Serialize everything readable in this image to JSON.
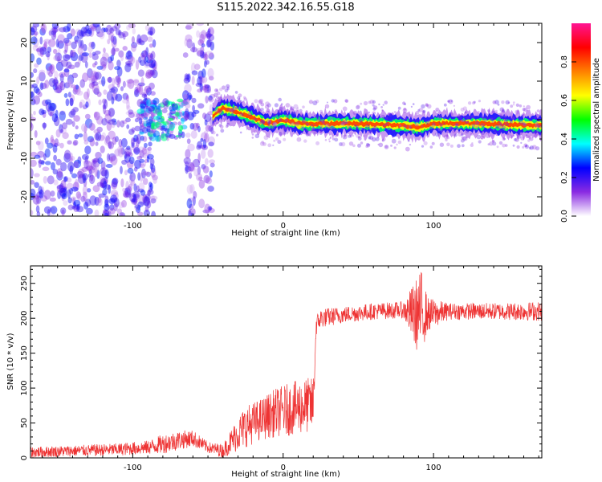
{
  "title": "S115.2022.342.16.55.G18",
  "chart_data": [
    {
      "type": "heatmap",
      "xlabel": "Height of straight line (km)",
      "ylabel": "Frequency (Hz)",
      "xlim": [
        -168,
        172
      ],
      "ylim": [
        -25,
        25
      ],
      "xticks": [
        -100,
        0,
        100
      ],
      "yticks": [
        -20,
        -10,
        0,
        10,
        20
      ],
      "grid": false,
      "colorbar": {
        "label": "Normalized spectral amplitude",
        "range": [
          0,
          1
        ],
        "ticks": [
          "0.0",
          "0.2",
          "0.4",
          "0.6",
          "0.8"
        ],
        "colors": [
          "#ffffff",
          "#8a2be2",
          "#0000ff",
          "#00ffff",
          "#00ff00",
          "#ffff00",
          "#ff8000",
          "#ff0000",
          "#ff1493"
        ]
      },
      "regions": [
        {
          "x_range": [
            -168,
            -85
          ],
          "freq_range": [
            -25,
            25
          ],
          "amplitude": 0.1,
          "note_type": "noise"
        },
        {
          "x_range": [
            -95,
            -65
          ],
          "freq_range": [
            -5,
            5
          ],
          "amplitude": 0.3,
          "note_type": "cluster"
        },
        {
          "x_range": [
            -65,
            -47
          ],
          "freq_range": [
            -25,
            25
          ],
          "amplitude": 0.1,
          "note_type": "noise"
        },
        {
          "x_range": [
            -47,
            172
          ],
          "freq_range": [
            -2,
            2
          ],
          "amplitude": 0.85,
          "note_type": "line"
        }
      ],
      "ridge": {
        "x": [
          -47,
          -40,
          -30,
          -20,
          -10,
          0,
          10,
          20,
          50,
          80,
          90,
          100,
          130,
          172
        ],
        "freq": [
          1,
          3,
          2,
          0.5,
          -1,
          0,
          -1,
          -1,
          -1,
          -1.5,
          -2,
          -1,
          -1,
          -1.5
        ]
      }
    },
    {
      "type": "line",
      "xlabel": "Height of straight line (km)",
      "ylabel": "SNR (10 * v/v)",
      "xlim": [
        -168,
        172
      ],
      "ylim": [
        0,
        275
      ],
      "xticks": [
        -100,
        0,
        100
      ],
      "yticks": [
        0,
        50,
        100,
        150,
        200,
        250
      ],
      "grid": false,
      "series": [
        {
          "color": "#ee3333",
          "x": [
            -168,
            -140,
            -110,
            -90,
            -80,
            -70,
            -60,
            -50,
            -40,
            -30,
            -25,
            -15,
            -5,
            5,
            15,
            20,
            22,
            25,
            40,
            60,
            80,
            88,
            92,
            96,
            110,
            140,
            172
          ],
          "y": [
            8,
            10,
            12,
            15,
            20,
            25,
            28,
            15,
            10,
            35,
            45,
            55,
            65,
            70,
            75,
            75,
            190,
            200,
            205,
            210,
            212,
            205,
            210,
            205,
            210,
            210,
            210
          ],
          "amp": [
            8,
            8,
            9,
            10,
            14,
            14,
            12,
            8,
            10,
            25,
            30,
            30,
            35,
            38,
            40,
            40,
            15,
            14,
            12,
            12,
            12,
            50,
            60,
            25,
            12,
            12,
            14
          ]
        }
      ]
    }
  ]
}
